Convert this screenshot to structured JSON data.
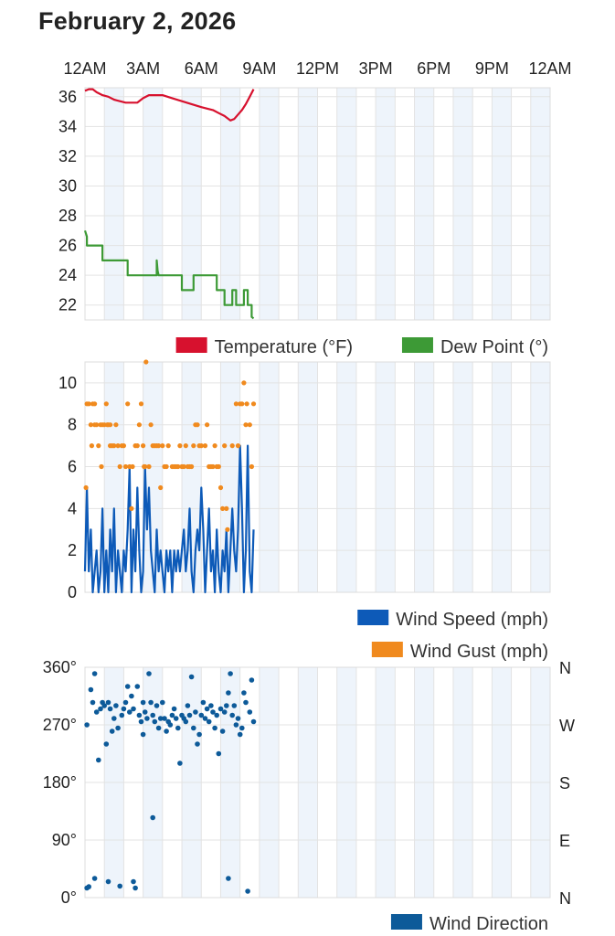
{
  "page": {
    "title": "February 2, 2026"
  },
  "x_axis": {
    "ticks": [
      "12AM",
      "3AM",
      "6AM",
      "9AM",
      "12PM",
      "3PM",
      "6PM",
      "9PM",
      "12AM"
    ],
    "range_hours": [
      0,
      24
    ]
  },
  "colors": {
    "temperature": "#d7112e",
    "dew_point": "#3d9a36",
    "wind_speed": "#0d5ab8",
    "wind_gust": "#f08a1e",
    "wind_direction": "#0d5a99",
    "band_shade": "#eef4fb",
    "grid": "#e3e3e3"
  },
  "chart_data": [
    {
      "type": "line",
      "title": "",
      "xlabel": "",
      "ylabel": "",
      "ylim": [
        21,
        36.6
      ],
      "y_ticks": [
        22,
        24,
        26,
        28,
        30,
        32,
        34,
        36
      ],
      "grid": true,
      "legend_position": "bottom-right",
      "series": [
        {
          "name": "Temperature (°F)",
          "color_key": "temperature",
          "x_hours": [
            0,
            0.2,
            0.4,
            0.6,
            0.9,
            1.2,
            1.5,
            1.8,
            2.1,
            2.4,
            2.7,
            3.0,
            3.3,
            3.6,
            4.0,
            4.5,
            5.0,
            5.5,
            6.0,
            6.3,
            6.6,
            6.9,
            7.2,
            7.5,
            7.7,
            7.9,
            8.1,
            8.3,
            8.5,
            8.7
          ],
          "y": [
            36.4,
            36.5,
            36.5,
            36.3,
            36.1,
            36.0,
            35.8,
            35.7,
            35.6,
            35.6,
            35.6,
            35.9,
            36.1,
            36.1,
            36.1,
            35.9,
            35.7,
            35.5,
            35.3,
            35.2,
            35.1,
            34.9,
            34.7,
            34.4,
            34.5,
            34.8,
            35.1,
            35.5,
            36.0,
            36.5
          ]
        },
        {
          "name": "Dew Point (°)",
          "color_key": "dew_point",
          "x_hours": [
            0,
            0.1,
            0.1,
            0.9,
            0.9,
            2.2,
            2.2,
            3.7,
            3.7,
            3.75,
            3.8,
            5.0,
            5.0,
            5.6,
            5.6,
            6.8,
            6.8,
            7.2,
            7.2,
            7.6,
            7.6,
            7.8,
            7.8,
            8.2,
            8.2,
            8.4,
            8.4,
            8.6,
            8.6,
            8.7
          ],
          "y": [
            27,
            26.6,
            26,
            26,
            25,
            25,
            24,
            24,
            25,
            24.3,
            24,
            24,
            23,
            23,
            24,
            24,
            23,
            23,
            22,
            22,
            23,
            23,
            22,
            22,
            23,
            23,
            22,
            22,
            21.2,
            21.1
          ]
        }
      ]
    },
    {
      "type": "line",
      "title": "",
      "xlabel": "",
      "ylabel": "",
      "ylim": [
        0,
        11
      ],
      "y_ticks": [
        0,
        2,
        4,
        6,
        8,
        10
      ],
      "grid": true,
      "legend_position": "bottom-right",
      "series": [
        {
          "name": "Wind Speed (mph)",
          "color_key": "wind_speed",
          "x_hours": [
            0,
            0.1,
            0.2,
            0.3,
            0.4,
            0.5,
            0.6,
            0.7,
            0.8,
            0.9,
            1.0,
            1.1,
            1.2,
            1.3,
            1.4,
            1.5,
            1.6,
            1.7,
            1.8,
            1.9,
            2.0,
            2.1,
            2.2,
            2.3,
            2.4,
            2.5,
            2.6,
            2.7,
            2.8,
            2.9,
            3.0,
            3.1,
            3.2,
            3.3,
            3.4,
            3.5,
            3.6,
            3.7,
            3.8,
            3.9,
            4.0,
            4.1,
            4.2,
            4.3,
            4.4,
            4.5,
            4.6,
            4.7,
            4.8,
            4.9,
            5.0,
            5.1,
            5.2,
            5.3,
            5.4,
            5.5,
            5.6,
            5.7,
            5.8,
            5.9,
            6.0,
            6.1,
            6.2,
            6.3,
            6.4,
            6.5,
            6.6,
            6.7,
            6.8,
            6.9,
            7.0,
            7.1,
            7.2,
            7.3,
            7.4,
            7.5,
            7.6,
            7.7,
            7.8,
            7.9,
            8.0,
            8.1,
            8.2,
            8.3,
            8.4,
            8.5,
            8.6,
            8.7
          ],
          "y": [
            1,
            5,
            1,
            3,
            0,
            1,
            2,
            0,
            1,
            4,
            0,
            2,
            0,
            3,
            1,
            4,
            0,
            2,
            1,
            0,
            2,
            1,
            3,
            6,
            0,
            3,
            1,
            5,
            2,
            0,
            1,
            6,
            3,
            5,
            2,
            1,
            0,
            3,
            1,
            2,
            1,
            0,
            2,
            1,
            2,
            0,
            2,
            1,
            2,
            1,
            2,
            3,
            1,
            2,
            4,
            1,
            0,
            2,
            3,
            2,
            5,
            3,
            0,
            2,
            4,
            1,
            2,
            0,
            3,
            1,
            0,
            2,
            1,
            3,
            0,
            2,
            4,
            2,
            1,
            3,
            7,
            4,
            0,
            2,
            7,
            1,
            0,
            3
          ]
        },
        {
          "name": "Wind Gust (mph)",
          "color_key": "wind_gust",
          "points": [
            [
              0.05,
              5
            ],
            [
              0.1,
              9
            ],
            [
              0.2,
              9
            ],
            [
              0.3,
              8
            ],
            [
              0.35,
              7
            ],
            [
              0.4,
              9
            ],
            [
              0.5,
              8
            ],
            [
              0.5,
              9
            ],
            [
              0.6,
              8
            ],
            [
              0.7,
              7
            ],
            [
              0.8,
              8
            ],
            [
              0.85,
              6
            ],
            [
              0.9,
              8
            ],
            [
              1.0,
              8
            ],
            [
              1.1,
              9
            ],
            [
              1.15,
              8
            ],
            [
              1.2,
              8
            ],
            [
              1.3,
              7
            ],
            [
              1.3,
              8
            ],
            [
              1.4,
              7
            ],
            [
              1.5,
              7
            ],
            [
              1.6,
              8
            ],
            [
              1.7,
              7
            ],
            [
              1.8,
              6
            ],
            [
              1.9,
              7
            ],
            [
              2.0,
              7
            ],
            [
              2.1,
              6
            ],
            [
              2.2,
              9
            ],
            [
              2.3,
              6
            ],
            [
              2.4,
              4
            ],
            [
              2.45,
              6
            ],
            [
              2.6,
              7
            ],
            [
              2.7,
              7
            ],
            [
              2.8,
              8
            ],
            [
              2.9,
              9
            ],
            [
              3.0,
              7
            ],
            [
              3.05,
              6
            ],
            [
              3.1,
              6
            ],
            [
              3.15,
              11
            ],
            [
              3.3,
              6
            ],
            [
              3.4,
              8
            ],
            [
              3.5,
              7
            ],
            [
              3.6,
              7
            ],
            [
              3.7,
              7
            ],
            [
              3.8,
              7
            ],
            [
              3.9,
              5
            ],
            [
              4.0,
              7
            ],
            [
              4.1,
              6
            ],
            [
              4.2,
              6
            ],
            [
              4.3,
              7
            ],
            [
              4.5,
              6
            ],
            [
              4.6,
              6
            ],
            [
              4.7,
              6
            ],
            [
              4.8,
              6
            ],
            [
              4.9,
              7
            ],
            [
              5.0,
              6
            ],
            [
              5.1,
              6
            ],
            [
              5.2,
              7
            ],
            [
              5.3,
              6
            ],
            [
              5.4,
              6
            ],
            [
              5.5,
              6
            ],
            [
              5.6,
              7
            ],
            [
              5.7,
              8
            ],
            [
              5.8,
              8
            ],
            [
              5.9,
              7
            ],
            [
              6.0,
              7
            ],
            [
              6.2,
              7
            ],
            [
              6.3,
              8
            ],
            [
              6.4,
              6
            ],
            [
              6.5,
              6
            ],
            [
              6.6,
              6
            ],
            [
              6.7,
              7
            ],
            [
              6.8,
              6
            ],
            [
              6.9,
              6
            ],
            [
              7.0,
              5
            ],
            [
              7.1,
              4
            ],
            [
              7.2,
              7
            ],
            [
              7.3,
              4
            ],
            [
              7.35,
              3
            ],
            [
              7.6,
              7
            ],
            [
              7.8,
              9
            ],
            [
              7.9,
              7
            ],
            [
              8.0,
              9
            ],
            [
              8.1,
              9
            ],
            [
              8.2,
              10
            ],
            [
              8.3,
              8
            ],
            [
              8.35,
              9
            ],
            [
              8.5,
              8
            ],
            [
              8.6,
              6
            ],
            [
              8.7,
              9
            ]
          ]
        }
      ]
    },
    {
      "type": "scatter",
      "title": "",
      "xlabel": "",
      "ylabel": "",
      "ylim": [
        0,
        360
      ],
      "y_ticks": [
        0,
        90,
        180,
        270,
        360
      ],
      "y_tick_labels": [
        "0°",
        "90°",
        "180°",
        "270°",
        "360°"
      ],
      "y_tick_labels_right": [
        "N",
        "E",
        "S",
        "W",
        "N"
      ],
      "grid": true,
      "legend_position": "bottom-right",
      "series": [
        {
          "name": "Wind Direction",
          "color_key": "wind_direction",
          "points": [
            [
              0.1,
              270
            ],
            [
              0.1,
              15
            ],
            [
              0.2,
              17
            ],
            [
              0.3,
              325
            ],
            [
              0.4,
              305
            ],
            [
              0.5,
              350
            ],
            [
              0.5,
              30
            ],
            [
              0.6,
              290
            ],
            [
              0.7,
              215
            ],
            [
              0.8,
              295
            ],
            [
              0.9,
              305
            ],
            [
              1.0,
              300
            ],
            [
              1.1,
              240
            ],
            [
              1.2,
              25
            ],
            [
              1.2,
              305
            ],
            [
              1.3,
              295
            ],
            [
              1.4,
              260
            ],
            [
              1.5,
              280
            ],
            [
              1.6,
              300
            ],
            [
              1.7,
              265
            ],
            [
              1.8,
              18
            ],
            [
              1.9,
              285
            ],
            [
              2.0,
              295
            ],
            [
              2.1,
              305
            ],
            [
              2.2,
              330
            ],
            [
              2.3,
              290
            ],
            [
              2.4,
              315
            ],
            [
              2.5,
              25
            ],
            [
              2.5,
              295
            ],
            [
              2.6,
              15
            ],
            [
              2.7,
              330
            ],
            [
              2.8,
              285
            ],
            [
              2.9,
              275
            ],
            [
              3.0,
              255
            ],
            [
              3.0,
              305
            ],
            [
              3.1,
              290
            ],
            [
              3.2,
              280
            ],
            [
              3.3,
              350
            ],
            [
              3.4,
              305
            ],
            [
              3.5,
              125
            ],
            [
              3.5,
              285
            ],
            [
              3.6,
              275
            ],
            [
              3.7,
              300
            ],
            [
              3.8,
              265
            ],
            [
              3.9,
              280
            ],
            [
              4.0,
              305
            ],
            [
              4.1,
              280
            ],
            [
              4.2,
              260
            ],
            [
              4.3,
              275
            ],
            [
              4.4,
              270
            ],
            [
              4.5,
              285
            ],
            [
              4.6,
              295
            ],
            [
              4.7,
              280
            ],
            [
              4.8,
              265
            ],
            [
              4.9,
              210
            ],
            [
              5.0,
              285
            ],
            [
              5.1,
              280
            ],
            [
              5.2,
              275
            ],
            [
              5.3,
              300
            ],
            [
              5.4,
              285
            ],
            [
              5.5,
              345
            ],
            [
              5.6,
              265
            ],
            [
              5.7,
              290
            ],
            [
              5.8,
              240
            ],
            [
              5.9,
              255
            ],
            [
              6.0,
              285
            ],
            [
              6.1,
              305
            ],
            [
              6.2,
              280
            ],
            [
              6.3,
              295
            ],
            [
              6.4,
              275
            ],
            [
              6.5,
              300
            ],
            [
              6.6,
              290
            ],
            [
              6.7,
              265
            ],
            [
              6.8,
              285
            ],
            [
              6.9,
              225
            ],
            [
              7.0,
              295
            ],
            [
              7.1,
              260
            ],
            [
              7.2,
              290
            ],
            [
              7.3,
              300
            ],
            [
              7.4,
              30
            ],
            [
              7.4,
              320
            ],
            [
              7.5,
              350
            ],
            [
              7.6,
              285
            ],
            [
              7.7,
              300
            ],
            [
              7.8,
              270
            ],
            [
              7.9,
              280
            ],
            [
              8.0,
              255
            ],
            [
              8.1,
              265
            ],
            [
              8.2,
              320
            ],
            [
              8.3,
              305
            ],
            [
              8.4,
              10
            ],
            [
              8.5,
              290
            ],
            [
              8.6,
              340
            ],
            [
              8.7,
              275
            ]
          ]
        }
      ]
    }
  ]
}
